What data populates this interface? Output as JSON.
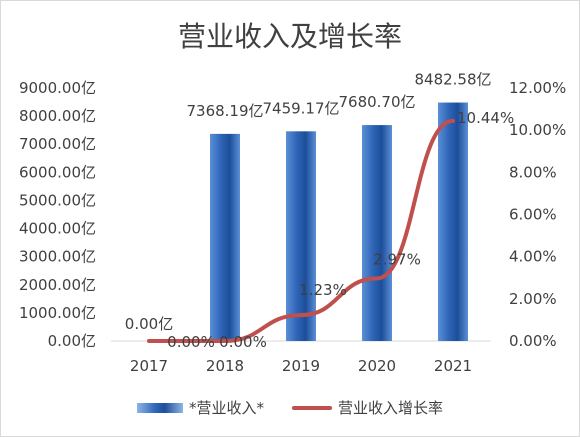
{
  "chart_data": {
    "type": "bar",
    "title": "营业收入及增长率",
    "categories": [
      "2017",
      "2018",
      "2019",
      "2020",
      "2021"
    ],
    "series": [
      {
        "name": "*营业收入*",
        "type": "bar",
        "axis": "left",
        "values": [
          0,
          7368.19,
          7459.17,
          7680.7,
          8482.58
        ],
        "labels": [
          "0.00亿",
          "7368.19亿",
          "7459.17亿",
          "7680.70亿",
          "8482.58亿"
        ],
        "color": "#2f66b8"
      },
      {
        "name": "营业收入增长率",
        "type": "line",
        "axis": "right",
        "values": [
          0.0,
          0.0,
          1.23,
          2.97,
          10.44
        ],
        "labels": [
          "0.00%",
          "0.00%",
          "1.23%",
          "2.97%",
          "10.44%"
        ],
        "color": "#c0504d"
      }
    ],
    "y_left": {
      "ylim": [
        0,
        9000
      ],
      "ticks": [
        0,
        1000,
        2000,
        3000,
        4000,
        5000,
        6000,
        7000,
        8000,
        9000
      ],
      "tick_labels": [
        "0.00亿",
        "1000.00亿",
        "2000.00亿",
        "3000.00亿",
        "4000.00亿",
        "5000.00亿",
        "6000.00亿",
        "7000.00亿",
        "8000.00亿",
        "9000.00亿"
      ]
    },
    "y_right": {
      "ylim": [
        0,
        12
      ],
      "ticks": [
        0,
        2,
        4,
        6,
        8,
        10,
        12
      ],
      "tick_labels": [
        "0.00%",
        "2.00%",
        "4.00%",
        "6.00%",
        "8.00%",
        "10.00%",
        "12.00%"
      ]
    },
    "grid": false,
    "legend_position": "bottom",
    "xlabel": "",
    "ylabel": ""
  }
}
